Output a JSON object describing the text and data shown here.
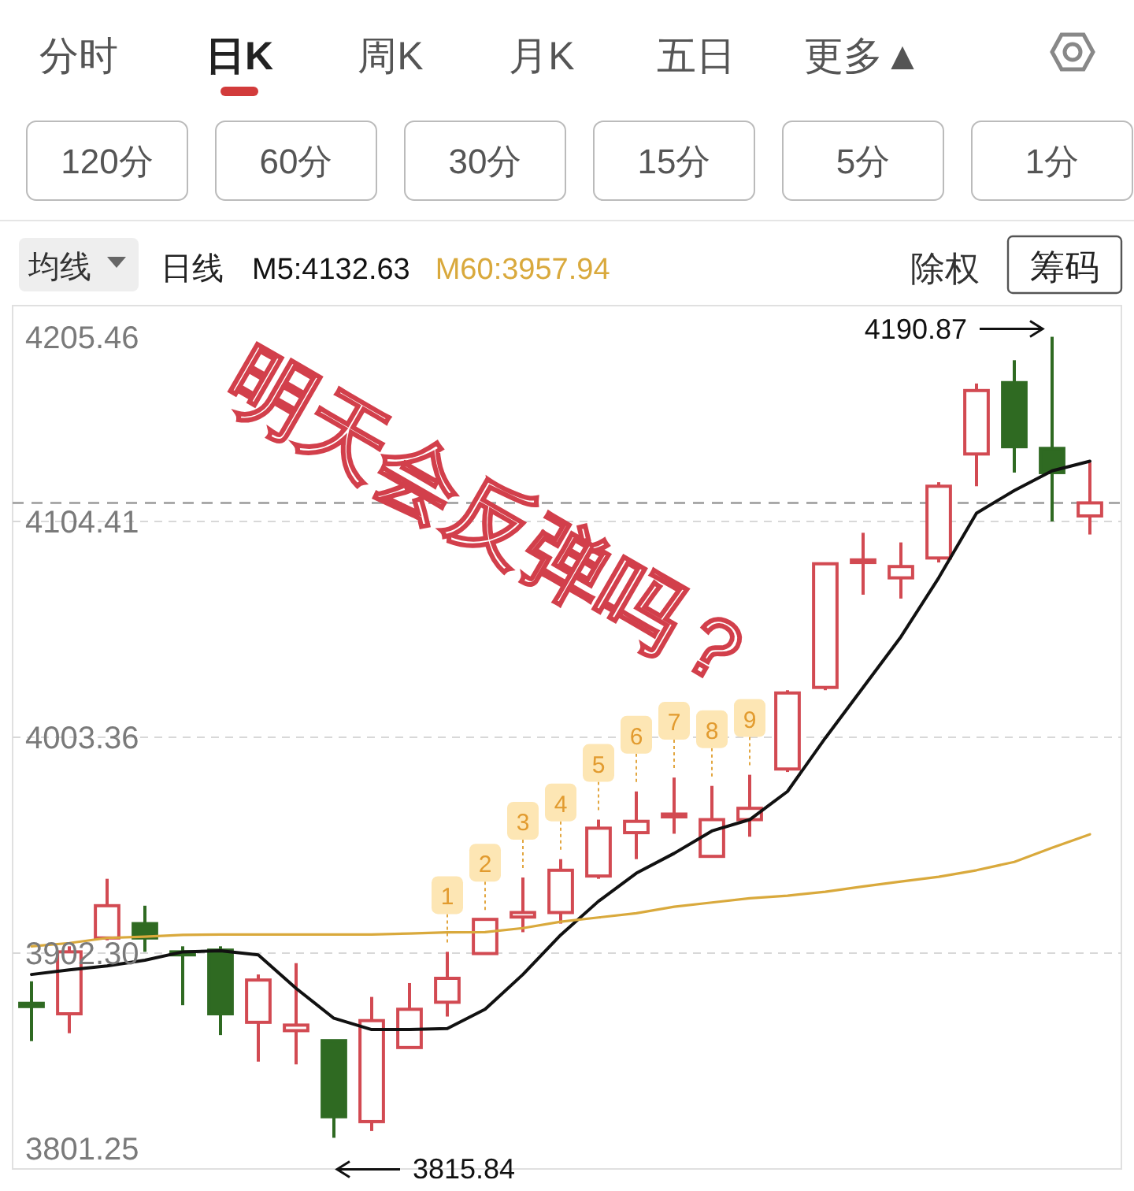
{
  "chart_data": {
    "type": "candlestick",
    "categories": [
      null,
      null,
      null,
      null,
      null,
      null,
      null,
      null,
      null,
      null,
      null,
      null,
      null,
      null,
      null,
      null,
      null,
      null,
      null,
      null,
      null,
      null,
      null,
      null,
      null,
      null,
      null,
      null,
      null
    ],
    "ohlc": [
      [
        3878.8,
        3889.1,
        3861.1,
        3877.3
      ],
      [
        3873.9,
        3905.5,
        3864.8,
        3902.9
      ],
      [
        3909.4,
        3937.1,
        3908.3,
        3924.5
      ],
      [
        3916.1,
        3924.5,
        3902.9,
        3909.4
      ],
      [
        3902.9,
        3905.5,
        3877.9,
        3901.5
      ],
      [
        3903.7,
        3905.5,
        3863.9,
        3873.9
      ],
      [
        3869.9,
        3892.3,
        3851.5,
        3889.7
      ],
      [
        3866.0,
        3897.6,
        3850.2,
        3868.6
      ],
      [
        3861.3,
        3861.3,
        3815.84,
        3825.7
      ],
      [
        3823.4,
        3881.8,
        3819.0,
        3870.7
      ],
      [
        3858.1,
        3888.3,
        3858.1,
        3876.0
      ],
      [
        3879.3,
        3902.9,
        3872.6,
        3890.5
      ],
      [
        3902.1,
        3918.1,
        3902.1,
        3918.1
      ],
      [
        3919.2,
        3937.7,
        3912.1,
        3921.3
      ],
      [
        3921.3,
        3946.3,
        3916.1,
        3941.1
      ],
      [
        3938.4,
        3964.8,
        3937.1,
        3960.8
      ],
      [
        3958.7,
        3978.0,
        3946.3,
        3964.0
      ],
      [
        3966.1,
        3984.5,
        3958.2,
        3967.4
      ],
      [
        3947.6,
        3980.6,
        3947.6,
        3964.8
      ],
      [
        3964.8,
        3985.8,
        3956.8,
        3970.1
      ],
      [
        3988.5,
        4025.4,
        3987.1,
        4024.1
      ],
      [
        4026.7,
        4084.6,
        4025.4,
        4084.6
      ],
      [
        4085.2,
        4099.1,
        4070.1,
        4086.4
      ],
      [
        4078.0,
        4094.6,
        4068.3,
        4083.3
      ],
      [
        4087.3,
        4122.8,
        4085.2,
        4120.9
      ],
      [
        4136.0,
        4169.0,
        4120.9,
        4165.7
      ],
      [
        4169.4,
        4179.9,
        4127.3,
        4139.4
      ],
      [
        4138.6,
        4190.87,
        4104.4,
        4127.3
      ],
      [
        4107.0,
        4132.0,
        4098.3,
        4113.1
      ]
    ],
    "colors": [
      "#2f6a22",
      "#d24a52",
      "#d24a52",
      "#2f6a22",
      "#2f6a22",
      "#2f6a22",
      "#d24a52",
      "#d24a52",
      "#2f6a22",
      "#d24a52",
      "#d24a52",
      "#d24a52",
      "#d24a52",
      "#d24a52",
      "#d24a52",
      "#d24a52",
      "#d24a52",
      "#d24a52",
      "#d24a52",
      "#d24a52",
      "#d24a52",
      "#d24a52",
      "#d24a52",
      "#d24a52",
      "#d24a52",
      "#d24a52",
      "#2f6a22",
      "#2f6a22",
      "#d24a52"
    ],
    "series": [
      {
        "name": "M5:4132.63",
        "type": "line",
        "color": "#111111",
        "values": [
          3892.3,
          3894.5,
          3896.3,
          3899.0,
          3902.9,
          3903.4,
          3901.5,
          3885.8,
          3871.8,
          3866.5,
          3866.5,
          3867.0,
          3876.0,
          3892.3,
          3910.8,
          3926.6,
          3939.7,
          3949.0,
          3959.5,
          3964.8,
          3978.0,
          4003.0,
          4026.7,
          4050.4,
          4078.0,
          4108.3,
          4118.9,
          4128.1,
          4132.63
        ]
      },
      {
        "name": "M60:3957.94",
        "type": "line",
        "color": "#d9a93c",
        "values": [
          3905.5,
          3907,
          3909.4,
          3910,
          3910.8,
          3911,
          3911,
          3911,
          3911,
          3911,
          3911.5,
          3912,
          3912.1,
          3914,
          3917,
          3919,
          3921,
          3924,
          3926,
          3928,
          3929.2,
          3931,
          3933.5,
          3935.8,
          3938,
          3941.1,
          3945,
          3951.6,
          3957.94
        ]
      }
    ],
    "ylim": [
      3801.25,
      4205.46
    ],
    "yticks": [
      3801.25,
      {
        "value": 3902.3,
        "label": "3902.30"
      },
      4003.36,
      4104.41,
      4205.46
    ],
    "grid": "y",
    "tick_labels": "y",
    "legend": "top left",
    "ref_lines": [
      {
        "axis": "y",
        "value": 4113.1,
        "color": "#9a9a9a",
        "line_style": "dashed"
      }
    ],
    "annotations": [
      "分时",
      "日K",
      "周K",
      "月K",
      "五日",
      "更多▲",
      "120分",
      "60分",
      "30分",
      "15分",
      "5分",
      "1分",
      "均线",
      "日线",
      "除权",
      "筹码",
      "明天会反弹吗？",
      "4190.87",
      "3815.84",
      {
        "text": "1",
        "y": 3902.9
      },
      {
        "text": "2",
        "y": 3918.1
      },
      {
        "text": "3",
        "y": 3937.7
      },
      {
        "text": "4",
        "y": 3946.3
      },
      {
        "text": "5",
        "y": 3964.8
      },
      {
        "text": "6",
        "y": 3978.0
      },
      {
        "text": "7",
        "y": 3984.5
      },
      {
        "text": "8",
        "y": 3980.6
      },
      {
        "text": "9",
        "y": 3985.8
      }
    ]
  }
}
